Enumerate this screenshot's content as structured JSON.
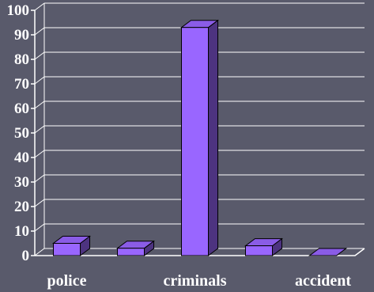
{
  "chart_data": {
    "type": "bar",
    "style": "3d",
    "categories": [
      "police",
      "",
      "criminals",
      "",
      "accident"
    ],
    "values": [
      5,
      3,
      93,
      4,
      0
    ],
    "ylim": [
      0,
      100
    ],
    "yticks": [
      0,
      10,
      20,
      30,
      40,
      50,
      60,
      70,
      80,
      90,
      100
    ],
    "grid": true,
    "legend": "none",
    "colors": {
      "background": "#595a6b",
      "bar_front": "#9966ff",
      "bar_top": "#8a5ce6",
      "bar_side": "#4d3380",
      "grid": "#ffffff",
      "text": "#ffffff"
    }
  }
}
